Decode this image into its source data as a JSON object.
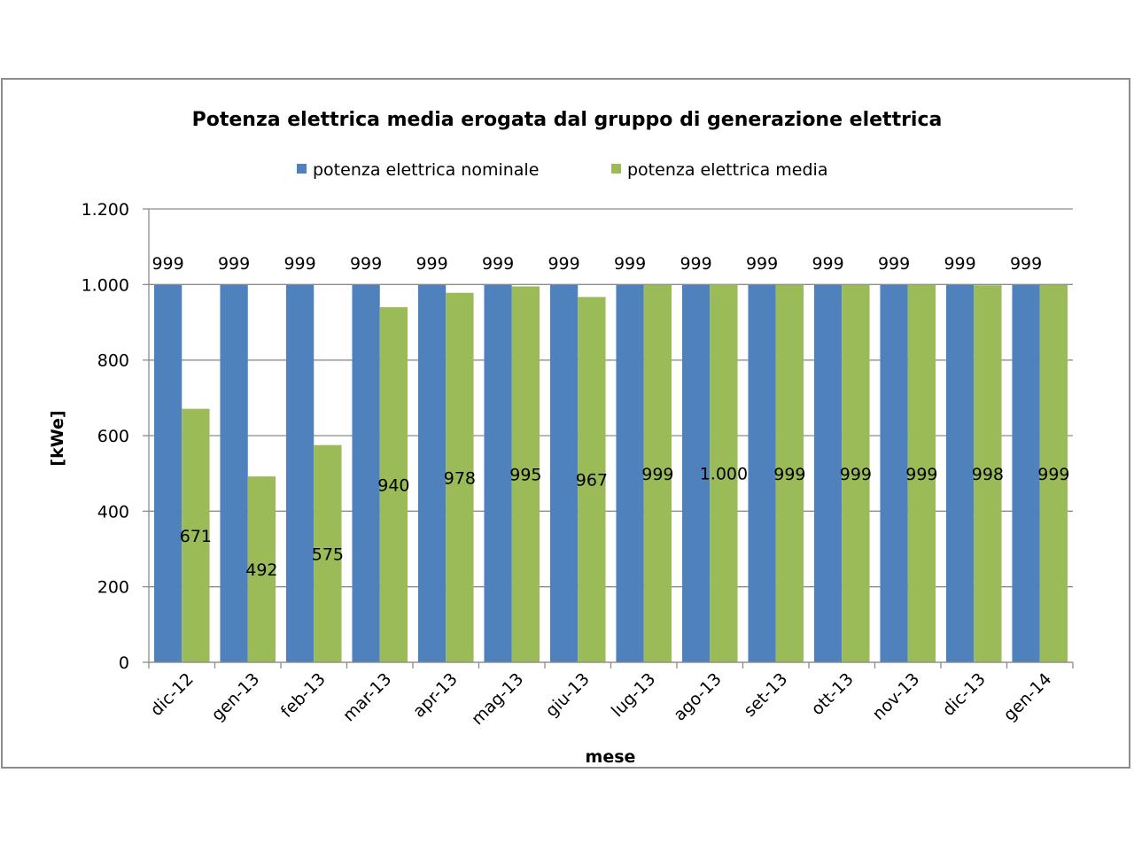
{
  "chart_data": {
    "type": "bar",
    "title": "Potenza elettrica media erogata dal gruppo di generazione elettrica",
    "xlabel": "mese",
    "ylabel": "[kWe]",
    "ylim": [
      0,
      1200
    ],
    "yticks": [
      0,
      200,
      400,
      600,
      800,
      1000,
      1200
    ],
    "ytick_labels": [
      "0",
      "200",
      "400",
      "600",
      "800",
      "1.000",
      "1.200"
    ],
    "grid": true,
    "legend_position": "top",
    "categories": [
      "dic-12",
      "gen-13",
      "feb-13",
      "mar-13",
      "apr-13",
      "mag-13",
      "giu-13",
      "lug-13",
      "ago-13",
      "set-13",
      "ott-13",
      "nov-13",
      "dic-13",
      "gen-14"
    ],
    "series": [
      {
        "name": "potenza elettrica nominale",
        "color": "#4f81bd",
        "values": [
          999,
          999,
          999,
          999,
          999,
          999,
          999,
          999,
          999,
          999,
          999,
          999,
          999,
          999
        ],
        "labels": [
          "999",
          "999",
          "999",
          "999",
          "999",
          "999",
          "999",
          "999",
          "999",
          "999",
          "999",
          "999",
          "999",
          "999"
        ]
      },
      {
        "name": "potenza elettrica media",
        "color": "#9bbb59",
        "values": [
          671,
          492,
          575,
          940,
          978,
          995,
          967,
          999,
          1000,
          999,
          999,
          999,
          998,
          999
        ],
        "labels": [
          "671",
          "492",
          "575",
          "940",
          "978",
          "995",
          "967",
          "999",
          "1.000",
          "999",
          "999",
          "999",
          "998",
          "999"
        ]
      }
    ]
  }
}
